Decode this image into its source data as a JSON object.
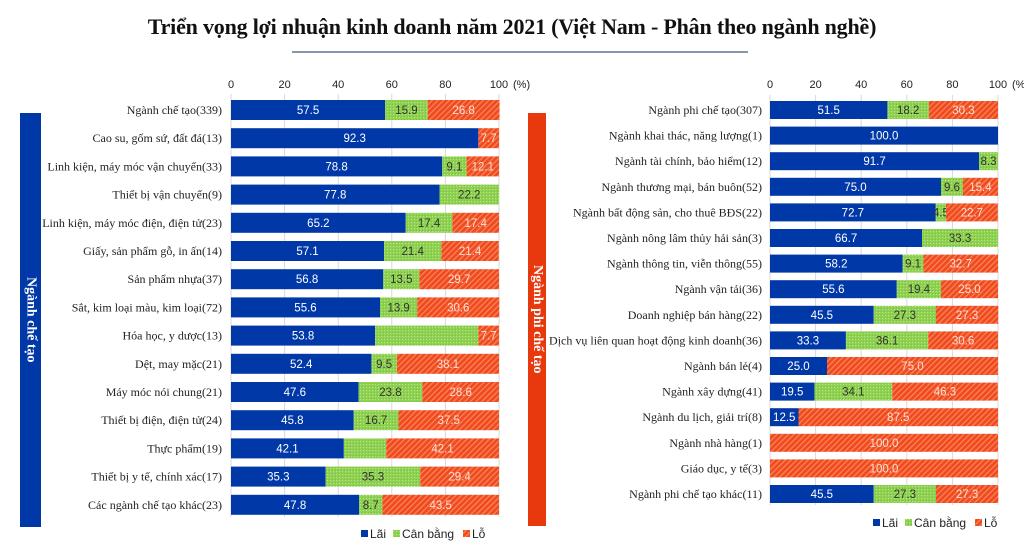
{
  "title": "Triển vọng lợi nhuận kinh doanh năm 2021 (Việt Nam - Phân theo ngành nghề)",
  "colors": {
    "lai": "#0038a8",
    "can_bang": "#8fd150",
    "lo": "#f04a1e",
    "band_left": "#0038a8",
    "band_right": "#e8380d"
  },
  "chart_data": [
    {
      "type": "bar",
      "orientation": "horizontal-stacked",
      "group_label": "Ngành chế tạo",
      "xlabel": "(%)",
      "xlim": [
        0,
        100
      ],
      "x_ticks": [
        "0",
        "20",
        "40",
        "60",
        "80",
        "100"
      ],
      "grid": true,
      "legend_position": "bottom-right",
      "legend": [
        "Lãi",
        "Cân bằng",
        "Lỗ"
      ],
      "categories": [
        "Ngành chế tạo(339)",
        "Cao su, gốm sứ, đất đá(13)",
        "Linh kiện, máy móc vận chuyển(33)",
        "Thiết bị vận chuyển(9)",
        "Linh kiện, máy móc điện, điện tử(23)",
        "Giấy, sản phẩm gỗ, in ấn(14)",
        "Sản phẩm nhựa(37)",
        "Sắt, kim loại màu, kim loại(72)",
        "Hóa học, y dược(13)",
        "Dệt, may mặc(21)",
        "Máy móc nói chung(21)",
        "Thiết bị điện, điện tử(24)",
        "Thực phẩm(19)",
        "Thiết bị y tế, chính xác(17)",
        "Các ngành chế tạo khác(23)"
      ],
      "series": [
        {
          "name": "Lãi",
          "values": [
            57.5,
            92.3,
            78.8,
            77.8,
            65.2,
            57.1,
            56.8,
            55.6,
            53.8,
            52.4,
            47.6,
            45.8,
            42.1,
            35.3,
            47.8
          ],
          "labels": [
            "57.5",
            "92.3",
            "78.8",
            "77.8",
            "65.2",
            "57.1",
            "56.8",
            "55.6",
            "53.8",
            "52.4",
            "47.6",
            "45.8",
            "42.1",
            "35.3",
            "47.8"
          ]
        },
        {
          "name": "Cân bằng",
          "values": [
            15.9,
            0,
            9.1,
            22.2,
            17.4,
            21.4,
            13.5,
            13.9,
            38.5,
            9.5,
            23.8,
            16.7,
            15.8,
            35.3,
            8.7
          ],
          "labels": [
            "15.9",
            "",
            "9.1",
            "22.2",
            "17.4",
            "21.4",
            "13.5",
            "13.9",
            "",
            "9.5",
            "23.8",
            "16.7",
            "",
            "35.3",
            "8.7"
          ]
        },
        {
          "name": "Lỗ",
          "values": [
            26.8,
            7.7,
            12.1,
            0,
            17.4,
            21.4,
            29.7,
            30.6,
            7.7,
            38.1,
            28.6,
            37.5,
            42.1,
            29.4,
            43.5
          ],
          "labels": [
            "26.8",
            "7.7",
            "12.1",
            "",
            "17.4",
            "21.4",
            "29.7",
            "30.6",
            "7.7",
            "38.1",
            "28.6",
            "37.5",
            "42.1",
            "29.4",
            "43.5"
          ]
        }
      ]
    },
    {
      "type": "bar",
      "orientation": "horizontal-stacked",
      "group_label": "Ngành phi chế tạo",
      "xlabel": "(%)",
      "xlim": [
        0,
        100
      ],
      "x_ticks": [
        "0",
        "20",
        "40",
        "60",
        "80",
        "100"
      ],
      "grid": true,
      "legend_position": "bottom-right",
      "legend": [
        "Lãi",
        "Cân bằng",
        "Lỗ"
      ],
      "categories": [
        "Ngành phi chế tạo(307)",
        "Ngành khai thác, năng lượng(1)",
        "Ngành tài chính, bảo  hiểm(12)",
        "Ngành thương mại, bán buôn(52)",
        "Ngành bất động sản, cho thuê BĐS(22)",
        "Ngành nông lâm thủy hải sản(3)",
        "Ngành thông tin, viễn thông(55)",
        "Ngành vận tải(36)",
        "Doanh nghiệp bán hàng(22)",
        "Dịch vụ liên quan hoạt động kinh doanh(36)",
        "Ngành bán lẻ(4)",
        "Ngành xây dựng(41)",
        "Ngành du lịch, giải trí(8)",
        "Ngành nhà hàng(1)",
        "Giáo dục, y tế(3)",
        "Ngành phi chế tạo khác(11)"
      ],
      "series": [
        {
          "name": "Lãi",
          "values": [
            51.5,
            100.0,
            91.7,
            75.0,
            72.7,
            66.7,
            58.2,
            55.6,
            45.5,
            33.3,
            25.0,
            19.5,
            12.5,
            0,
            0,
            45.5
          ],
          "labels": [
            "51.5",
            "100.0",
            "91.7",
            "75.0",
            "72.7",
            "66.7",
            "58.2",
            "55.6",
            "45.5",
            "33.3",
            "25.0",
            "19.5",
            "12.5",
            "",
            "",
            "45.5"
          ]
        },
        {
          "name": "Cân bằng",
          "values": [
            18.2,
            0,
            8.3,
            9.6,
            4.5,
            33.3,
            9.1,
            19.4,
            27.3,
            36.1,
            0,
            34.1,
            0,
            0,
            0,
            27.3
          ],
          "labels": [
            "18.2",
            "",
            "8.3",
            "9.6",
            "4.5",
            "33.3",
            "9.1",
            "19.4",
            "27.3",
            "36.1",
            "",
            "34.1",
            "",
            "",
            "",
            "27.3"
          ]
        },
        {
          "name": "Lỗ",
          "values": [
            30.3,
            0,
            0,
            15.4,
            22.7,
            0,
            32.7,
            25.0,
            27.3,
            30.6,
            75.0,
            46.3,
            87.5,
            100.0,
            100.0,
            27.3
          ],
          "labels": [
            "30.3",
            "",
            "",
            "15.4",
            "22.7",
            "",
            "32.7",
            "25.0",
            "27.3",
            "30.6",
            "75.0",
            "46.3",
            "87.5",
            "100.0",
            "100.0",
            "27.3"
          ]
        }
      ]
    }
  ]
}
